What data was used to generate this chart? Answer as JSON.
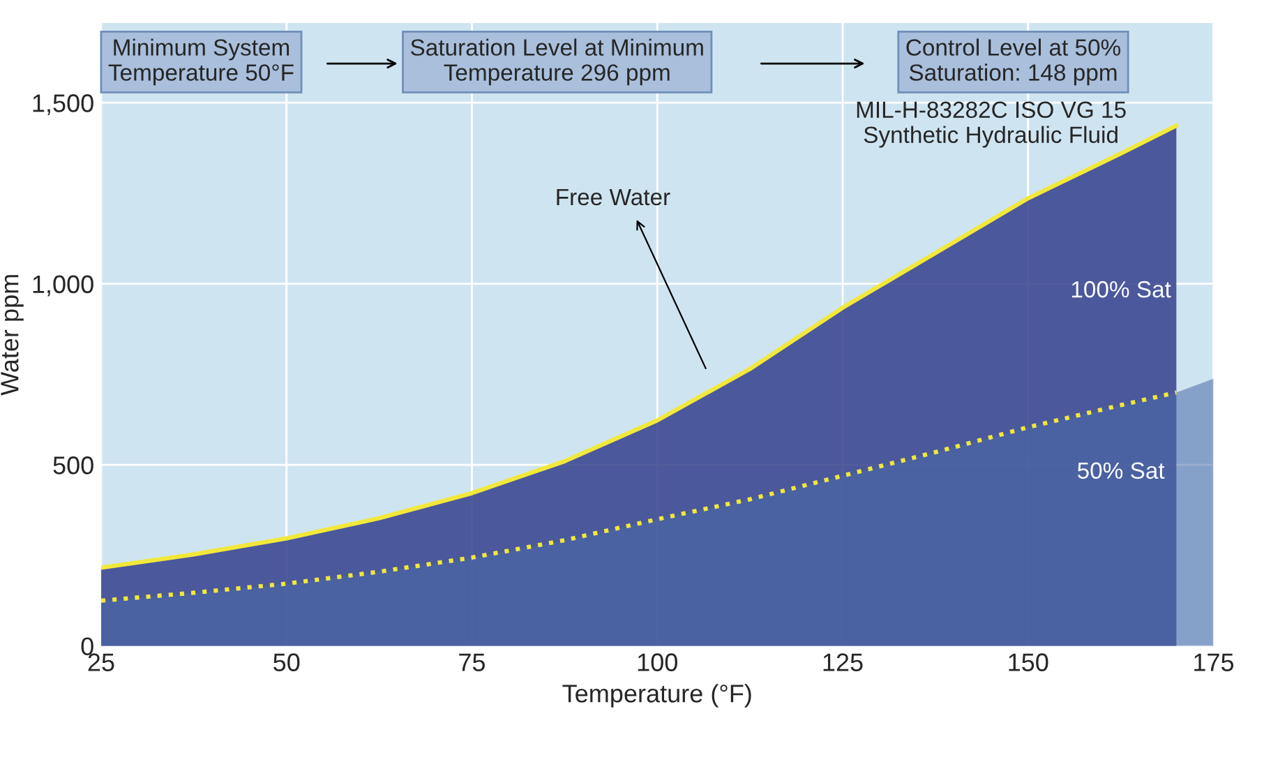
{
  "chart_data": {
    "type": "area",
    "xlabel": "Temperature (°F)",
    "ylabel": "Water ppm",
    "xlim": [
      25,
      175
    ],
    "xticks": [
      25,
      50,
      75,
      100,
      125,
      150,
      175
    ],
    "ylim": [
      0,
      1720
    ],
    "yticks": [
      0,
      500,
      {
        "value": 1000,
        "label": "1,000"
      },
      {
        "value": 1500,
        "label": "1,500"
      }
    ],
    "grid": true,
    "series": [
      {
        "name": "100% Sat",
        "color": "#34408c",
        "x": [
          25,
          37.5,
          50,
          62.5,
          75,
          87.5,
          100,
          112.5,
          125,
          137.5,
          150,
          162.5,
          170
        ],
        "values": [
          216,
          253,
          297,
          353,
          422,
          510,
          623,
          765,
          934,
          1085,
          1236,
          1360,
          1437
        ]
      },
      {
        "name": "50% Sat",
        "color": "#4a6aa8",
        "x": [
          25,
          37.5,
          50,
          62.5,
          75,
          87.5,
          100,
          112.5,
          125,
          137.5,
          150,
          162.5,
          170,
          175
        ],
        "values": [
          125,
          147,
          172,
          205,
          244,
          292,
          350,
          405,
          470,
          535,
          604,
          665,
          700,
          738
        ]
      },
      {
        "type": "line",
        "color": "#f2e83a",
        "line_style": "solid",
        "x": [
          25,
          37.5,
          50,
          62.5,
          75,
          87.5,
          100,
          112.5,
          125,
          137.5,
          150,
          162.5,
          170
        ],
        "values": [
          216,
          253,
          297,
          353,
          422,
          510,
          623,
          765,
          934,
          1085,
          1236,
          1360,
          1437
        ]
      },
      {
        "type": "line",
        "color": "#f2e83a",
        "line_style": "dotted",
        "x": [
          25,
          37.5,
          50,
          62.5,
          75,
          87.5,
          100,
          112.5,
          125,
          137.5,
          150,
          162.5,
          170
        ],
        "values": [
          125,
          147,
          172,
          205,
          244,
          292,
          350,
          405,
          470,
          535,
          604,
          665,
          700
        ]
      }
    ],
    "annotations": [
      "Minimum System\nTemperature 50°F",
      "Saturation Level at Minimum\nTemperature 296 ppm",
      "Control Level at 50%\nSaturation: 148 ppm",
      "MIL-H-83282C ISO VG 15\nSynthetic Hydraulic Fluid",
      "Free Water"
    ]
  }
}
